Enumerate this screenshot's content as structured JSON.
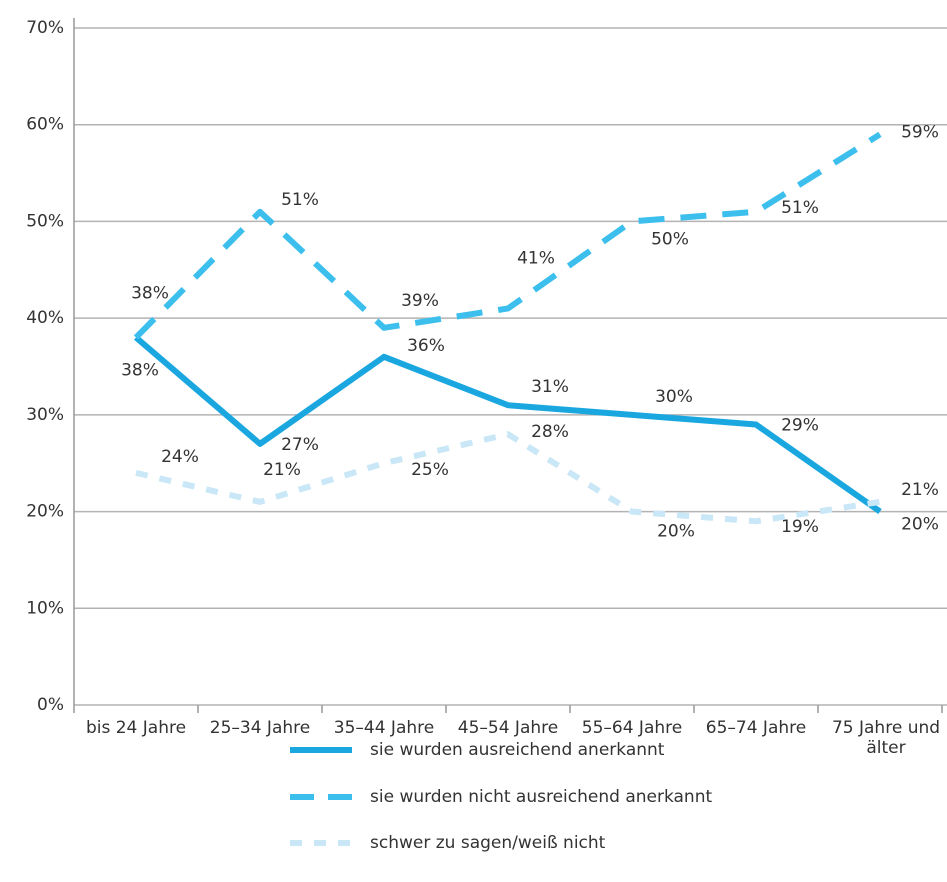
{
  "chart_data": {
    "type": "line",
    "categories": [
      "bis 24 Jahre",
      "25–34 Jahre",
      "35–44 Jahre",
      "45–54 Jahre",
      "55–64 Jahre",
      "65–74 Jahre",
      "75 Jahre und älter"
    ],
    "series": [
      {
        "name": "sie wurden ausreichend anerkannt",
        "color": "#1aa7e0",
        "style": "solid",
        "values": [
          38,
          27,
          36,
          31,
          30,
          29,
          20
        ],
        "value_labels": [
          "38%",
          "27%",
          "36%",
          "31%",
          "30%",
          "29%",
          "20%"
        ]
      },
      {
        "name": "sie wurden nicht ausreichend anerkannt",
        "color": "#3dbfee",
        "style": "dashed",
        "values": [
          38,
          51,
          39,
          41,
          50,
          51,
          59
        ],
        "value_labels": [
          "38%",
          "51%",
          "39%",
          "41%",
          "50%",
          "51%",
          "59%"
        ]
      },
      {
        "name": "schwer zu sagen/weiß nicht",
        "color": "#c9e7f6",
        "style": "dotted",
        "values": [
          24,
          21,
          25,
          28,
          20,
          19,
          21
        ],
        "value_labels": [
          "24%",
          "21%",
          "25%",
          "28%",
          "20%",
          "19%",
          "21%"
        ]
      }
    ],
    "ylim": [
      0,
      70
    ],
    "yticks": [
      {
        "value": 0,
        "label": "0%"
      },
      {
        "value": 10,
        "label": "10%"
      },
      {
        "value": 20,
        "label": "20%"
      },
      {
        "value": 30,
        "label": "30%"
      },
      {
        "value": 40,
        "label": "40%"
      },
      {
        "value": 50,
        "label": "50%"
      },
      {
        "value": 60,
        "label": "60%"
      },
      {
        "value": 70,
        "label": "70%"
      }
    ],
    "grid": true
  }
}
